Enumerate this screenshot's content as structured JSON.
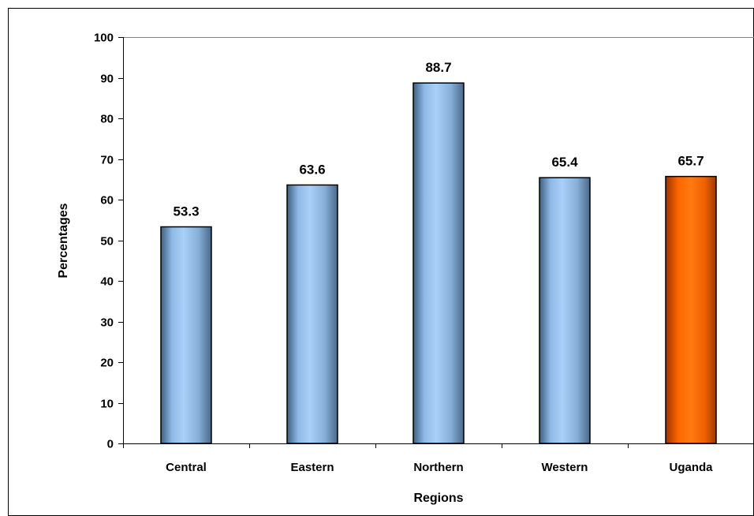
{
  "chart_data": {
    "type": "bar",
    "title": "",
    "xlabel": "Regions",
    "ylabel": "Percentages",
    "categories": [
      "Central",
      "Eastern",
      "Northern",
      "Western",
      "Uganda"
    ],
    "series": [
      {
        "values": [
          53.3,
          63.6,
          88.7,
          65.4,
          65.7
        ],
        "data_labels": [
          "53.3",
          "63.6",
          "88.7",
          "65.4",
          "65.7"
        ]
      }
    ],
    "ylim": [
      0,
      100
    ],
    "yticks": [
      0,
      10,
      20,
      30,
      40,
      50,
      60,
      70,
      80,
      90,
      100
    ],
    "grid": false,
    "legend": "none",
    "colors": {
      "regional_bar": "#9CC8F5",
      "national_bar": "#FF6600",
      "highlight_category": "Uganda"
    }
  }
}
